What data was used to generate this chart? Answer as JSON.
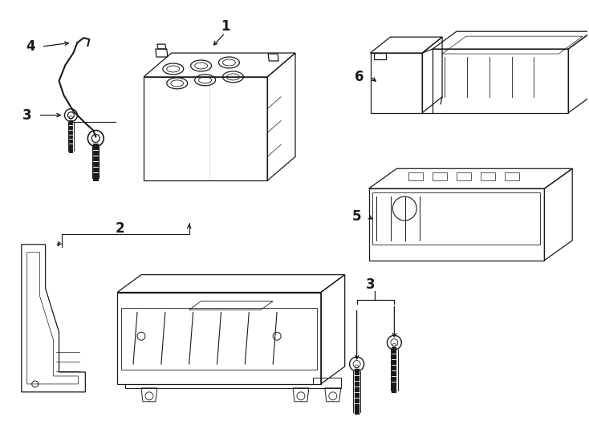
{
  "bg_color": "#ffffff",
  "line_color": "#1a1a1a",
  "lw": 0.9,
  "figw": 7.34,
  "figh": 5.4,
  "dpi": 100
}
